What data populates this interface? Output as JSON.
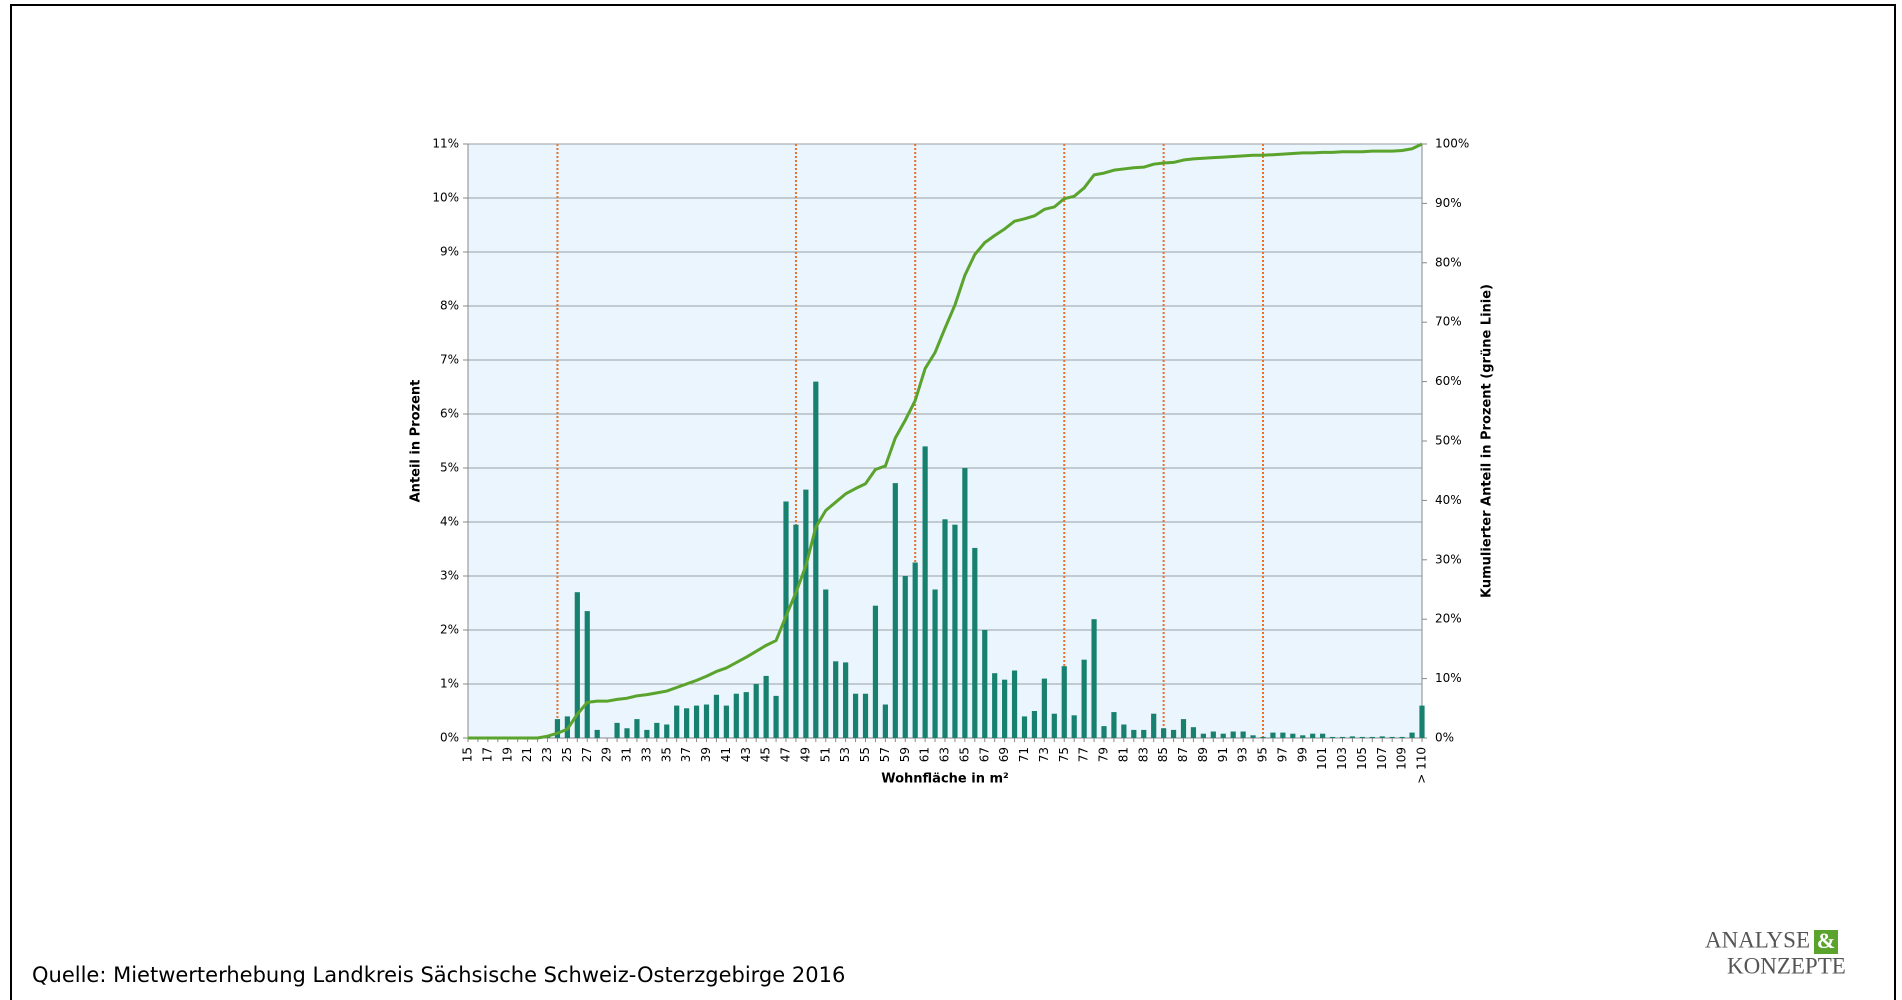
{
  "chart_data": {
    "type": "bar",
    "categories": [
      "15",
      null,
      "17",
      null,
      "19",
      null,
      "21",
      null,
      "23",
      null,
      "25",
      null,
      "27",
      null,
      "29",
      null,
      "31",
      null,
      "33",
      null,
      "35",
      null,
      "37",
      null,
      "39",
      null,
      "41",
      null,
      "43",
      null,
      "45",
      null,
      "47",
      null,
      "49",
      null,
      "51",
      null,
      "53",
      null,
      "55",
      null,
      "57",
      null,
      "59",
      null,
      "61",
      null,
      "63",
      null,
      "65",
      null,
      "67",
      null,
      "69",
      null,
      "71",
      null,
      "73",
      null,
      "75",
      null,
      "77",
      null,
      "79",
      null,
      "81",
      null,
      "83",
      null,
      "85",
      null,
      "87",
      null,
      "89",
      null,
      "91",
      null,
      "93",
      null,
      "95",
      null,
      "97",
      null,
      "99",
      null,
      "101",
      null,
      "103",
      null,
      "105",
      null,
      "107",
      null,
      "109",
      null,
      "> 110"
    ],
    "series": [
      {
        "color": "#17806f",
        "values": [
          0,
          0,
          0,
          0,
          0,
          0,
          0,
          0,
          0.05,
          0.35,
          0.4,
          2.7,
          2.35,
          0.15,
          0,
          0.28,
          0.18,
          0.35,
          0.15,
          0.28,
          0.25,
          0.6,
          0.55,
          0.6,
          0.62,
          0.8,
          0.6,
          0.82,
          0.85,
          1.0,
          1.15,
          0.78,
          4.38,
          3.95,
          4.6,
          6.6,
          2.75,
          1.42,
          1.4,
          0.82,
          0.82,
          2.45,
          0.62,
          4.72,
          3.0,
          3.25,
          5.4,
          2.75,
          4.05,
          3.95,
          5.0,
          3.52,
          2.0,
          1.2,
          1.08,
          1.25,
          0.4,
          0.5,
          1.1,
          0.45,
          1.33,
          0.42,
          1.45,
          2.2,
          0.22,
          0.48,
          0.25,
          0.15,
          0.15,
          0.45,
          0.18,
          0.15,
          0.35,
          0.2,
          0.08,
          0.12,
          0.08,
          0.12,
          0.12,
          0.05,
          0.02,
          0.1,
          0.1,
          0.08,
          0.05,
          0.08,
          0.08,
          0.02,
          0.02,
          0.03,
          0.02,
          0.02,
          0.03,
          0.02,
          0.02,
          0.1,
          0.6
        ]
      },
      {
        "color": "#5aa32c",
        "type": "line",
        "axis": "y2",
        "values": [
          0,
          0,
          0,
          0,
          0,
          0,
          0,
          0,
          0.3,
          0.8,
          1.5,
          4,
          6,
          6.2,
          6.2,
          6.5,
          6.7,
          7.1,
          7.3,
          7.6,
          7.9,
          8.5,
          9.1,
          9.7,
          10.4,
          11.2,
          11.8,
          12.7,
          13.6,
          14.6,
          15.6,
          16.4,
          20.5,
          24.5,
          29,
          35.5,
          38.3,
          39.7,
          41.1,
          42,
          42.8,
          45.2,
          45.8,
          50.5,
          53.5,
          56.8,
          62.2,
          64.9,
          69,
          72.9,
          77.9,
          81.4,
          83.4,
          84.6,
          85.7,
          87,
          87.4,
          87.9,
          89,
          89.4,
          90.8,
          91.2,
          92.6,
          94.8,
          95.1,
          95.6,
          95.8,
          96,
          96.1,
          96.6,
          96.8,
          96.9,
          97.3,
          97.5,
          97.6,
          97.7,
          97.8,
          97.9,
          98,
          98.1,
          98.1,
          98.2,
          98.3,
          98.4,
          98.5,
          98.5,
          98.6,
          98.6,
          98.7,
          98.7,
          98.7,
          98.8,
          98.8,
          98.8,
          98.9,
          99.2,
          100
        ]
      }
    ],
    "vlines": [
      24,
      48,
      60,
      75,
      85,
      95
    ],
    "vline_color": "#e8722a",
    "ylim": [
      0,
      11
    ],
    "yticks": [
      {
        "value": 0,
        "label": "0%"
      },
      {
        "value": 1,
        "label": "1%"
      },
      {
        "value": 2,
        "label": "2%"
      },
      {
        "value": 3,
        "label": "3%"
      },
      {
        "value": 4,
        "label": "4%"
      },
      {
        "value": 5,
        "label": "5%"
      },
      {
        "value": 6,
        "label": "6%"
      },
      {
        "value": 7,
        "label": "7%"
      },
      {
        "value": 8,
        "label": "8%"
      },
      {
        "value": 9,
        "label": "9%"
      },
      {
        "value": 10,
        "label": "10%"
      },
      {
        "value": 11,
        "label": "11%"
      }
    ],
    "y2lim": [
      0,
      100
    ],
    "y2ticks": [
      {
        "value": 0,
        "label": "0%"
      },
      {
        "value": 10,
        "label": "10%"
      },
      {
        "value": 20,
        "label": "20%"
      },
      {
        "value": 30,
        "label": "30%"
      },
      {
        "value": 40,
        "label": "40%"
      },
      {
        "value": 50,
        "label": "50%"
      },
      {
        "value": 60,
        "label": "60%"
      },
      {
        "value": 70,
        "label": "70%"
      },
      {
        "value": 80,
        "label": "80%"
      },
      {
        "value": 90,
        "label": "90%"
      },
      {
        "value": 100,
        "label": "100%"
      }
    ],
    "xlabel": "Wohnfläche in m²",
    "ylabel": "Anteil in Prozent",
    "y2label": "Kumulierter Anteil in Prozent (grüne Linie)",
    "grid": true
  },
  "source": "Quelle: Mietwerterhebung Landkreis Sächsische Schweiz-Osterzgebirge 2016",
  "logo": {
    "line1": "ANALYSE",
    "amp": "&",
    "line2": "KONZEPTE"
  }
}
